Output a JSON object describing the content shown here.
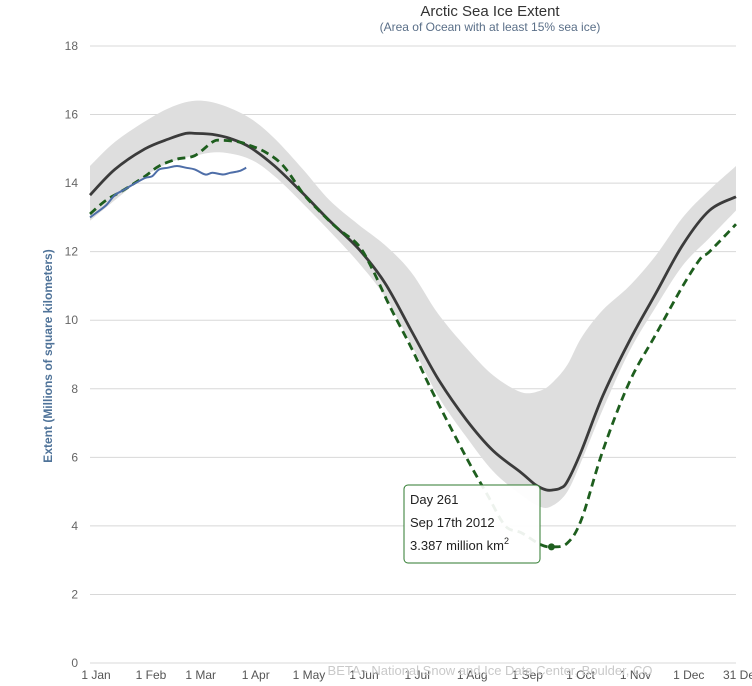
{
  "chart_data": {
    "type": "line",
    "title": "Arctic Sea Ice Extent",
    "subtitle": "(Area of Ocean with at least 15% sea ice)",
    "ylabel": "Extent (Millions of square kilometers)",
    "xlabel": "",
    "ylim": [
      0,
      18
    ],
    "yticks": [
      0,
      2,
      4,
      6,
      8,
      10,
      12,
      14,
      16,
      18
    ],
    "xlim": [
      1,
      365
    ],
    "xticks": [
      {
        "day": 1,
        "label": "1 Jan"
      },
      {
        "day": 32,
        "label": "1 Feb"
      },
      {
        "day": 60,
        "label": "1 Mar"
      },
      {
        "day": 91,
        "label": "1 Apr"
      },
      {
        "day": 121,
        "label": "1 May"
      },
      {
        "day": 152,
        "label": "1 Jun"
      },
      {
        "day": 182,
        "label": "1 Jul"
      },
      {
        "day": 213,
        "label": "1 Aug"
      },
      {
        "day": 244,
        "label": "1 Sep"
      },
      {
        "day": 274,
        "label": "1 Oct"
      },
      {
        "day": 305,
        "label": "1 Nov"
      },
      {
        "day": 335,
        "label": "1 Dec"
      },
      {
        "day": 365,
        "label": "31 Dec"
      }
    ],
    "grid": true,
    "colors": {
      "band": "#dedede",
      "median": "#3b3b3b",
      "year2012": "#1e5e1e",
      "current": "#4e6ea8",
      "grid": "#d8d8d8",
      "tooltip_border": "#2e7a2e"
    },
    "series": [
      {
        "kind": "band",
        "x": [
          1,
          15,
          32,
          46,
          60,
          74,
          91,
          105,
          121,
          136,
          152,
          167,
          182,
          197,
          213,
          228,
          244,
          255,
          262,
          270,
          278,
          290,
          305,
          320,
          335,
          350,
          365
        ],
        "low": [
          12.9,
          13.5,
          14.2,
          14.6,
          14.8,
          14.9,
          14.7,
          14.2,
          13.4,
          12.6,
          11.7,
          10.7,
          9.3,
          7.8,
          6.6,
          5.6,
          4.9,
          4.55,
          4.6,
          5.0,
          5.9,
          7.4,
          9.1,
          10.4,
          11.6,
          12.4,
          13.2
        ],
        "high": [
          14.5,
          15.2,
          15.8,
          16.2,
          16.4,
          16.3,
          15.9,
          15.3,
          14.4,
          13.5,
          12.8,
          12.2,
          11.4,
          10.2,
          9.2,
          8.4,
          7.9,
          7.95,
          8.2,
          8.7,
          9.5,
          10.3,
          11.0,
          11.9,
          13.0,
          13.8,
          14.5
        ]
      },
      {
        "kind": "median",
        "x": [
          1,
          15,
          32,
          46,
          55,
          60,
          70,
          80,
          91,
          105,
          121,
          136,
          152,
          167,
          182,
          197,
          213,
          228,
          244,
          252,
          258,
          262,
          266,
          270,
          278,
          290,
          305,
          320,
          335,
          350,
          365
        ],
        "y": [
          13.65,
          14.4,
          15.0,
          15.3,
          15.45,
          15.45,
          15.42,
          15.3,
          15.05,
          14.5,
          13.7,
          12.9,
          12.1,
          11.1,
          9.7,
          8.3,
          7.1,
          6.2,
          5.55,
          5.2,
          5.05,
          5.05,
          5.1,
          5.3,
          6.2,
          7.8,
          9.4,
          10.8,
          12.2,
          13.2,
          13.6
        ]
      },
      {
        "kind": "2012",
        "x": [
          1,
          10,
          20,
          32,
          40,
          50,
          60,
          70,
          75,
          85,
          91,
          100,
          110,
          121,
          130,
          140,
          152,
          160,
          170,
          182,
          195,
          213,
          225,
          235,
          244,
          255,
          262,
          270,
          278,
          290,
          305,
          320,
          335,
          345,
          350,
          365
        ],
        "y": [
          13.1,
          13.5,
          13.8,
          14.2,
          14.5,
          14.7,
          14.8,
          15.2,
          15.25,
          15.2,
          15.1,
          14.9,
          14.5,
          13.7,
          13.2,
          12.7,
          12.2,
          11.5,
          10.4,
          9.2,
          7.8,
          6.0,
          4.9,
          4.0,
          3.8,
          3.45,
          3.387,
          3.5,
          4.2,
          6.2,
          8.2,
          9.6,
          11.0,
          11.8,
          12.0,
          12.8
        ]
      },
      {
        "kind": "current",
        "x": [
          1,
          5,
          10,
          15,
          20,
          25,
          32,
          36,
          40,
          45,
          50,
          55,
          60,
          66,
          70,
          76,
          80,
          85,
          89
        ],
        "y": [
          13.0,
          13.15,
          13.35,
          13.65,
          13.8,
          13.95,
          14.15,
          14.2,
          14.4,
          14.45,
          14.5,
          14.45,
          14.4,
          14.25,
          14.3,
          14.25,
          14.3,
          14.35,
          14.45
        ]
      }
    ],
    "highlight": {
      "day": 261,
      "value": 3.387
    },
    "tooltip": {
      "line1": "Day 261",
      "line2": "Sep 17th 2012",
      "line3": "3.387 million km",
      "sup": "2"
    },
    "credit": "BETA - National Snow and Ice Data Center, Boulder, CO"
  }
}
